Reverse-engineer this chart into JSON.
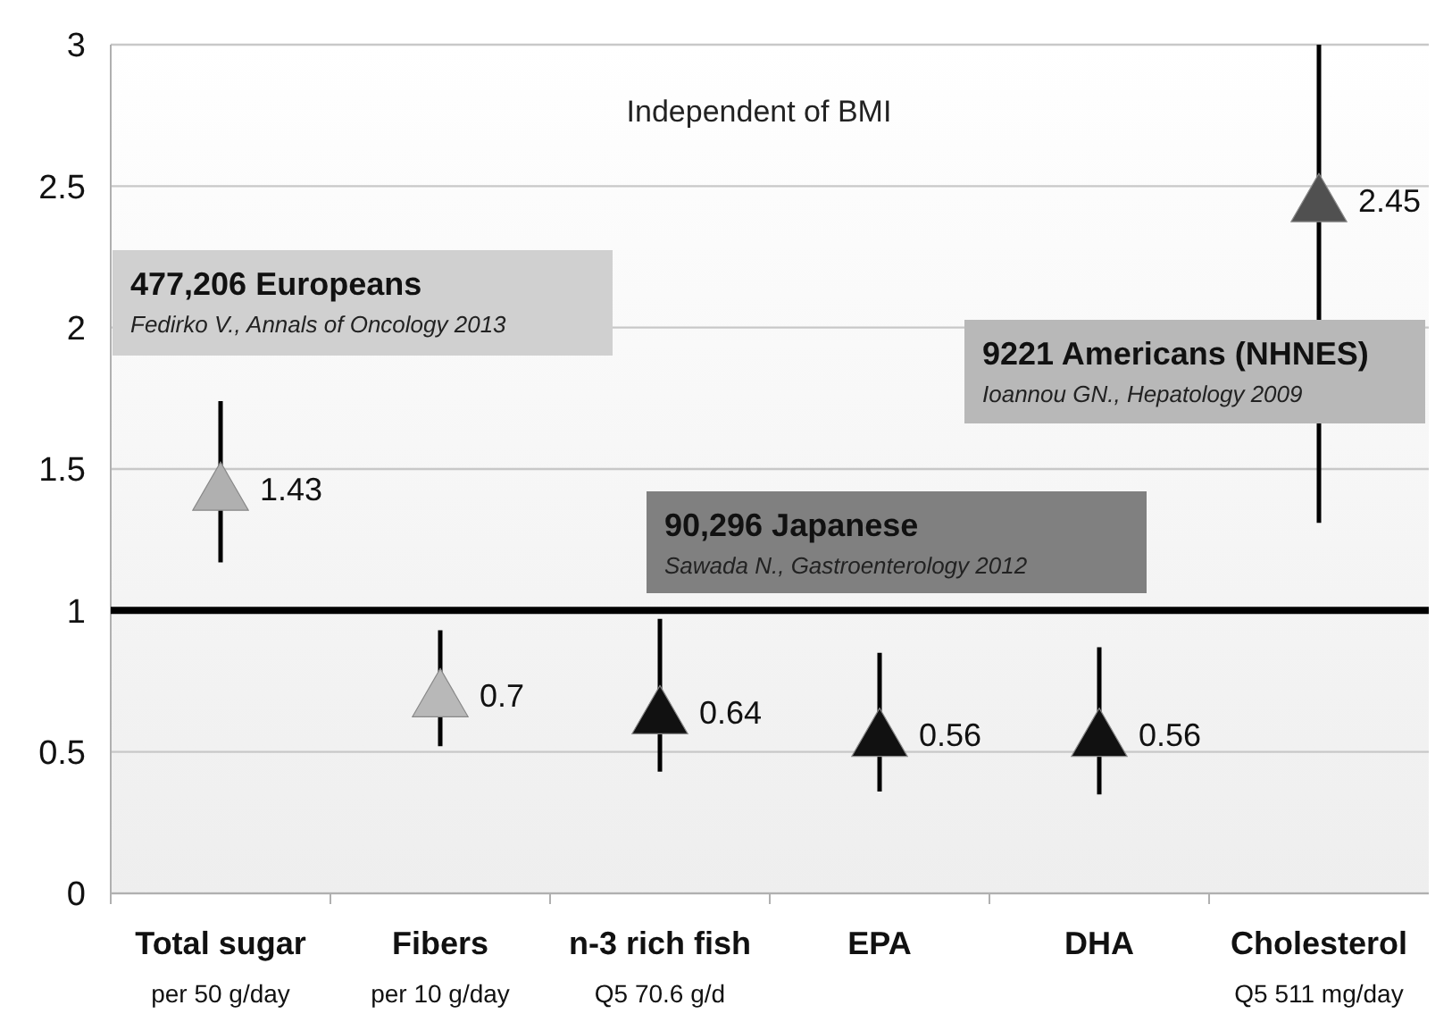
{
  "chart_data": {
    "type": "scatter",
    "categories": [
      "Total sugar\nper 50 g/day",
      "Fibers\nper 10 g/day",
      "n-3 rich fish\nQ5 70.6 g/d",
      "EPA",
      "DHA",
      "Cholesterol\nQ5 511 mg/day"
    ],
    "values": [
      1.43,
      0.7,
      0.64,
      0.56,
      0.56,
      2.45
    ],
    "errors": [
      [
        1.17,
        1.74
      ],
      [
        0.52,
        0.93
      ],
      [
        0.43,
        0.97
      ],
      [
        0.36,
        0.85
      ],
      [
        0.35,
        0.87
      ],
      [
        1.31,
        3
      ]
    ],
    "colors": [
      "#b0b0b0",
      "#b8b8b8",
      "#111111",
      "#111111",
      "#111111",
      "#505050"
    ],
    "marker": "triangle",
    "data_labels": true,
    "ylim": [
      0,
      3
    ],
    "yticks": [
      0,
      0.5,
      1,
      1.5,
      2,
      2.5,
      3
    ],
    "grid": "y",
    "ref_lines": [
      {
        "axis": "y",
        "value": 1,
        "color": "#000000"
      }
    ],
    "annotations": [
      "Independent of BMI",
      "477,206 Europeans",
      "Fedirko V., Annals of Oncology 2013",
      "90,296 Japanese",
      "Sawada N., Gastroenterology 2012",
      "9221 Americans (NHNES)",
      "Ioannou GN., Hepatology 2009"
    ]
  }
}
